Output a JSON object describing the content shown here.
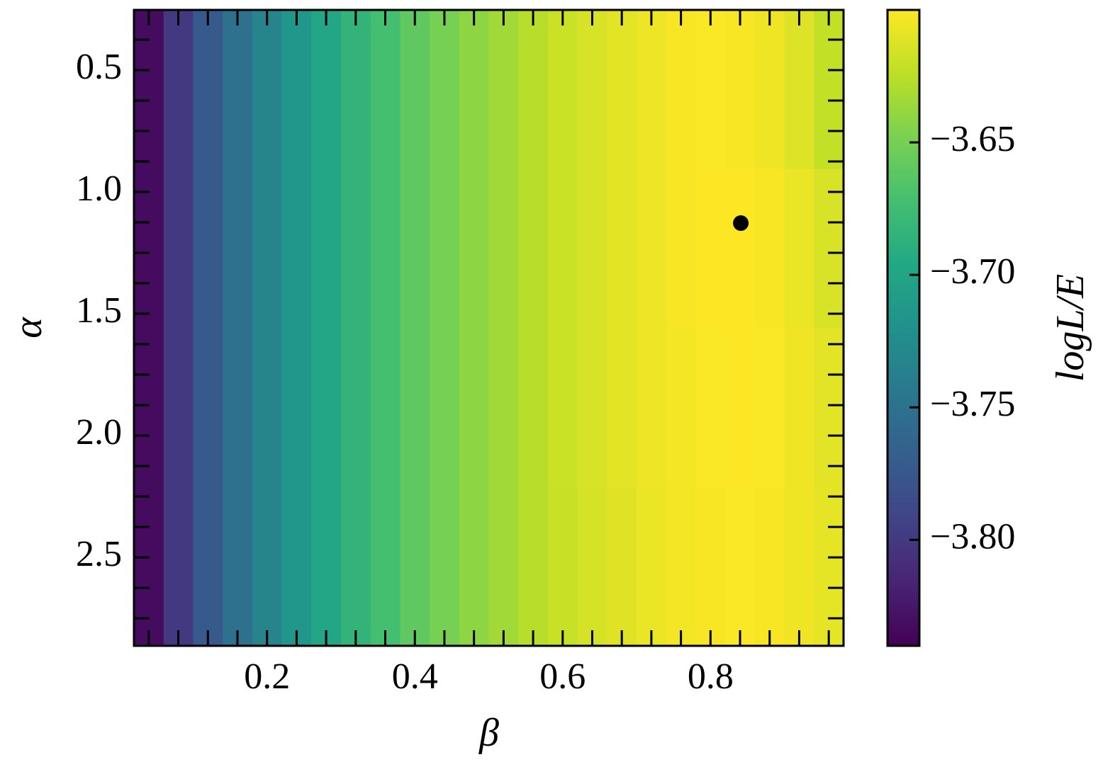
{
  "chart_data": {
    "type": "heatmap",
    "xlabel": "β",
    "ylabel": "α",
    "colorbar_label": "logL/E",
    "xlim": [
      0.02,
      0.98
    ],
    "ylim": [
      0.253,
      2.863
    ],
    "y_inverted": true,
    "xticks": [
      0.2,
      0.4,
      0.6,
      0.8
    ],
    "xminorticks": [
      0.04,
      0.08,
      0.12,
      0.16,
      0.24,
      0.28,
      0.32,
      0.36,
      0.44,
      0.48,
      0.52,
      0.56,
      0.64,
      0.68,
      0.72,
      0.76,
      0.84,
      0.88,
      0.92,
      0.96
    ],
    "yticks": [
      0.5,
      1.0,
      1.5,
      2.0,
      2.5
    ],
    "yticklabels": [
      "0.5",
      "1.0",
      "1.5",
      "2.0",
      "2.5"
    ],
    "yminorticks": [
      0.375,
      0.625,
      0.75,
      0.875,
      1.125,
      1.25,
      1.375,
      1.625,
      1.75,
      1.875,
      2.125,
      2.25,
      2.375,
      2.625,
      2.75
    ],
    "colormap": "viridis",
    "clim": [
      -3.84,
      -3.6
    ],
    "cticks": [
      {
        "value": -3.65,
        "label": "−3.65"
      },
      {
        "value": -3.7,
        "label": "−3.70"
      },
      {
        "value": -3.75,
        "label": "−3.75"
      },
      {
        "value": -3.8,
        "label": "−3.80"
      }
    ],
    "z": [
      [
        -3.833,
        -3.8,
        -3.773,
        -3.751,
        -3.732,
        -3.715,
        -3.698,
        -3.684,
        -3.672,
        -3.66,
        -3.65,
        -3.641,
        -3.634,
        -3.626,
        -3.619,
        -3.614,
        -3.61,
        -3.606,
        -3.602,
        -3.601,
        -3.602,
        -3.605,
        -3.612,
        -3.622
      ],
      [
        -3.833,
        -3.8,
        -3.773,
        -3.751,
        -3.732,
        -3.715,
        -3.698,
        -3.684,
        -3.672,
        -3.66,
        -3.65,
        -3.641,
        -3.634,
        -3.626,
        -3.619,
        -3.614,
        -3.61,
        -3.606,
        -3.602,
        -3.6,
        -3.6,
        -3.602,
        -3.607,
        -3.614
      ],
      [
        -3.833,
        -3.8,
        -3.773,
        -3.751,
        -3.732,
        -3.715,
        -3.698,
        -3.684,
        -3.672,
        -3.66,
        -3.65,
        -3.641,
        -3.634,
        -3.626,
        -3.619,
        -3.614,
        -3.61,
        -3.606,
        -3.603,
        -3.601,
        -3.6,
        -3.601,
        -3.605,
        -3.61
      ],
      [
        -3.833,
        -3.8,
        -3.773,
        -3.751,
        -3.732,
        -3.715,
        -3.698,
        -3.684,
        -3.672,
        -3.66,
        -3.65,
        -3.641,
        -3.634,
        -3.626,
        -3.62,
        -3.615,
        -3.611,
        -3.607,
        -3.604,
        -3.602,
        -3.601,
        -3.602,
        -3.605,
        -3.609
      ]
    ],
    "marker": {
      "x": 0.841,
      "y": 1.128,
      "color": "#000000"
    }
  }
}
